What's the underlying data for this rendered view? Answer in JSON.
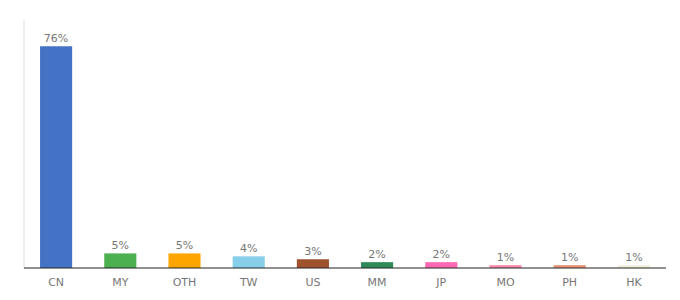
{
  "chart_data": {
    "type": "bar",
    "categories": [
      "CN",
      "MY",
      "OTH",
      "TW",
      "US",
      "MM",
      "JP",
      "MO",
      "PH",
      "HK"
    ],
    "values": [
      76,
      5,
      5,
      4,
      3,
      2,
      2,
      1,
      1,
      1
    ],
    "value_labels": [
      "76%",
      "5%",
      "5%",
      "4%",
      "3%",
      "2%",
      "2%",
      "1%",
      "1%",
      "1%"
    ],
    "colors": [
      "#4472C4",
      "#4CAF50",
      "#FFA500",
      "#87CEEB",
      "#A0522D",
      "#2E8B57",
      "#FF69B4",
      "#FF8FAB",
      "#E8967A",
      "#F5F0DC"
    ],
    "ylim": [
      0,
      85
    ],
    "data_labels": true,
    "tick_labels": "x",
    "grid": false
  }
}
